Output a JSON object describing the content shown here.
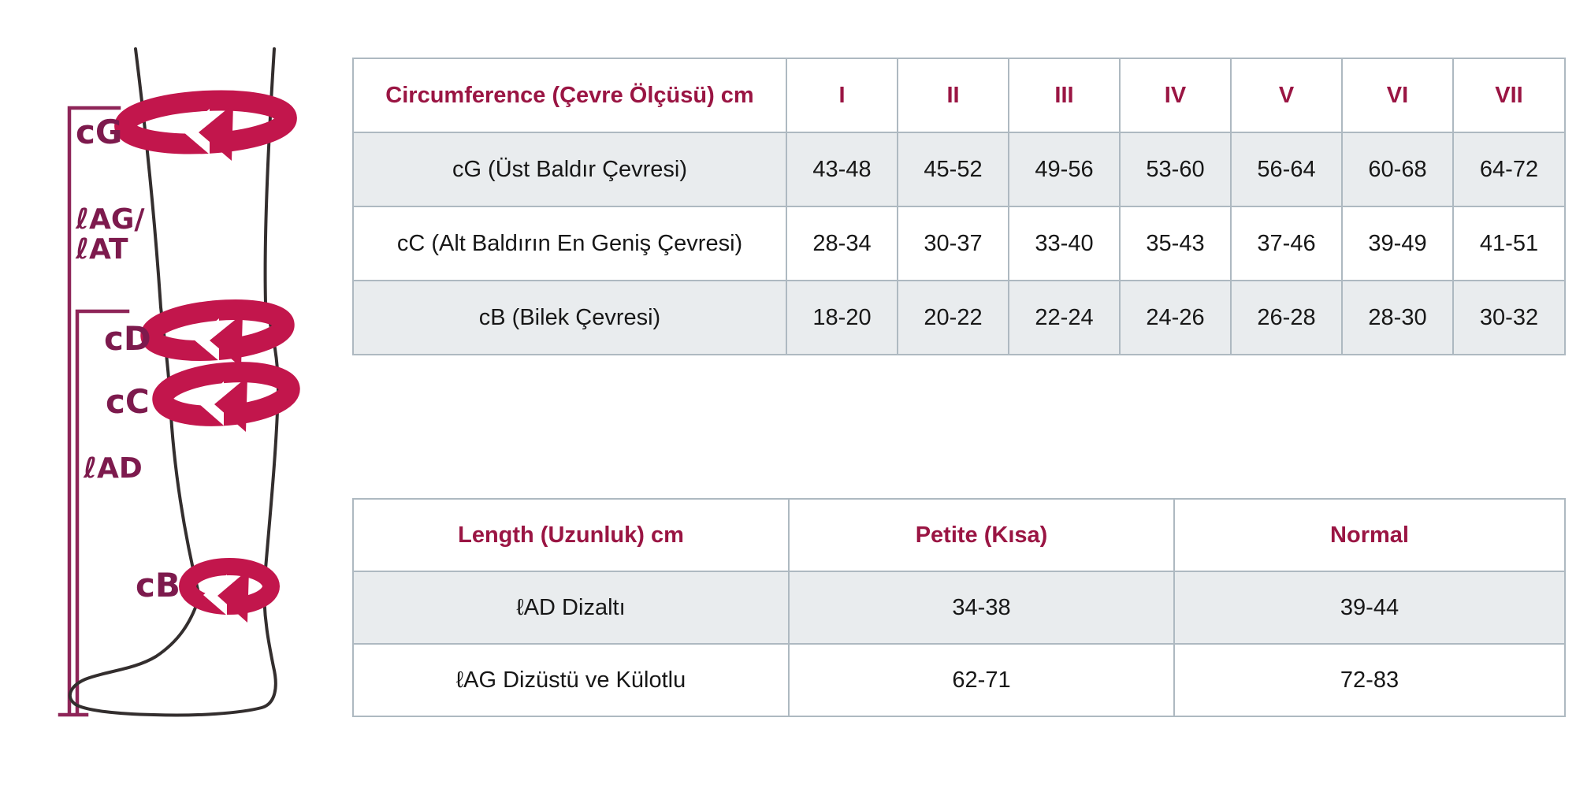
{
  "colors": {
    "band": "#C2164C",
    "line": "#8E2558",
    "leg": "#332e2e",
    "label": "#7D1A4D",
    "header_text": "#9A1543",
    "table_border": "#aeb9c1",
    "row_alt_bg": "#e9ecee"
  },
  "diagram": {
    "labels": {
      "cg": "cG",
      "lag": "ℓAG/",
      "lat": "ℓAT",
      "cd": "cD",
      "cc": "cC",
      "lad": "ℓAD",
      "cb": "cB"
    }
  },
  "circumference_table": {
    "title": "Circumference (Çevre Ölçüsü) cm",
    "columns": [
      "I",
      "II",
      "III",
      "IV",
      "V",
      "VI",
      "VII"
    ],
    "rows": [
      {
        "label": "cG (Üst Baldır Çevresi)",
        "values": [
          "43-48",
          "45-52",
          "49-56",
          "53-60",
          "56-64",
          "60-68",
          "64-72"
        ]
      },
      {
        "label": "cC (Alt Baldırın En Geniş Çevresi)",
        "values": [
          "28-34",
          "30-37",
          "33-40",
          "35-43",
          "37-46",
          "39-49",
          "41-51"
        ]
      },
      {
        "label": "cB (Bilek Çevresi)",
        "values": [
          "18-20",
          "20-22",
          "22-24",
          "24-26",
          "26-28",
          "28-30",
          "30-32"
        ]
      }
    ]
  },
  "length_table": {
    "title": "Length (Uzunluk) cm",
    "columns": [
      "Petite (Kısa)",
      "Normal"
    ],
    "rows": [
      {
        "label": "ℓAD Dizaltı",
        "values": [
          "34-38",
          "39-44"
        ]
      },
      {
        "label": "ℓAG Dizüstü ve Külotlu",
        "values": [
          "62-71",
          "72-83"
        ]
      }
    ]
  }
}
